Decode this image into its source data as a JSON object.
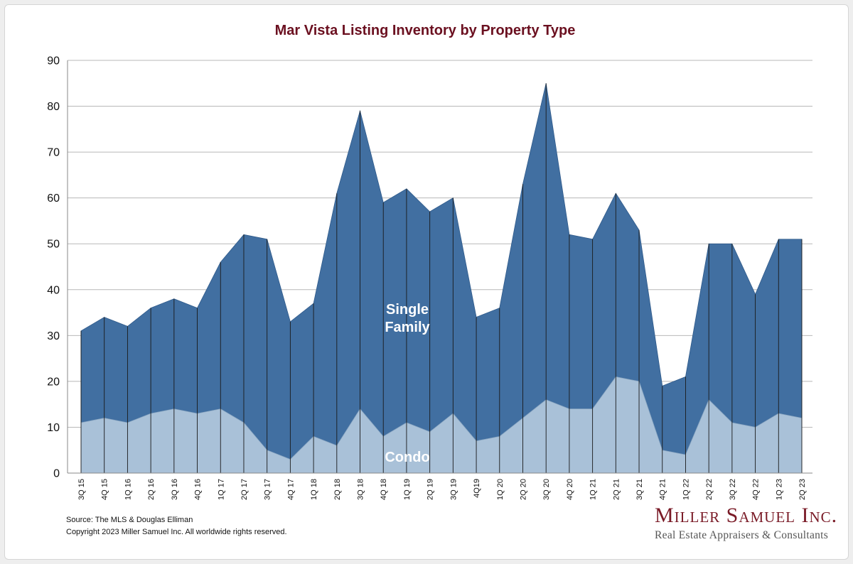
{
  "chart_data": {
    "type": "area",
    "stacked": true,
    "title": "Mar Vista Listing Inventory by Property Type",
    "categories": [
      "3Q 15",
      "4Q 15",
      "1Q 16",
      "2Q 16",
      "3Q 16",
      "4Q 16",
      "1Q 17",
      "2Q 17",
      "3Q 17",
      "4Q 17",
      "1Q 18",
      "2Q 18",
      "3Q 18",
      "4Q 18",
      "1Q 19",
      "2Q 19",
      "3Q 19",
      "4Q19",
      "1Q 20",
      "2Q 20",
      "3Q 20",
      "4Q 20",
      "1Q 21",
      "2Q 21",
      "3Q 21",
      "4Q 21",
      "1Q 22",
      "2Q 22",
      "3Q 22",
      "4Q 22",
      "1Q 23",
      "2Q 23"
    ],
    "series": [
      {
        "name": "Condo",
        "color": "#a9c1d8",
        "values": [
          11,
          12,
          11,
          13,
          14,
          13,
          14,
          11,
          5,
          3,
          8,
          6,
          14,
          8,
          11,
          9,
          13,
          7,
          8,
          12,
          16,
          14,
          14,
          21,
          20,
          5,
          4,
          16,
          11,
          10,
          13,
          12
        ]
      },
      {
        "name": "Single Family",
        "color": "#416fa1",
        "values": [
          20,
          22,
          21,
          23,
          24,
          23,
          32,
          41,
          46,
          30,
          29,
          55,
          65,
          51,
          51,
          48,
          47,
          27,
          28,
          51,
          69,
          38,
          37,
          40,
          33,
          14,
          17,
          34,
          39,
          29,
          38,
          39
        ]
      }
    ],
    "totals": [
      31,
      34,
      32,
      36,
      38,
      36,
      46,
      52,
      51,
      33,
      37,
      61,
      79,
      59,
      62,
      57,
      60,
      34,
      36,
      63,
      85,
      52,
      51,
      61,
      53,
      19,
      21,
      50,
      50,
      39,
      51,
      51
    ],
    "series_labels": {
      "single_family_line1": "Single",
      "single_family_line2": "Family",
      "condo": "Condo"
    },
    "yticks": [
      "0",
      "10",
      "20",
      "30",
      "40",
      "50",
      "60",
      "70",
      "80",
      "90"
    ],
    "ylim": [
      0,
      90
    ],
    "grid": true,
    "legend": "none"
  },
  "footer": {
    "source": "Source: The MLS & Douglas Elliman",
    "copyright": "Copyright 2023 Miller Samuel Inc.  All worldwide rights reserved."
  },
  "logo": {
    "name": "Miller Samuel Inc.",
    "tagline": "Real Estate Appraisers & Consultants"
  }
}
